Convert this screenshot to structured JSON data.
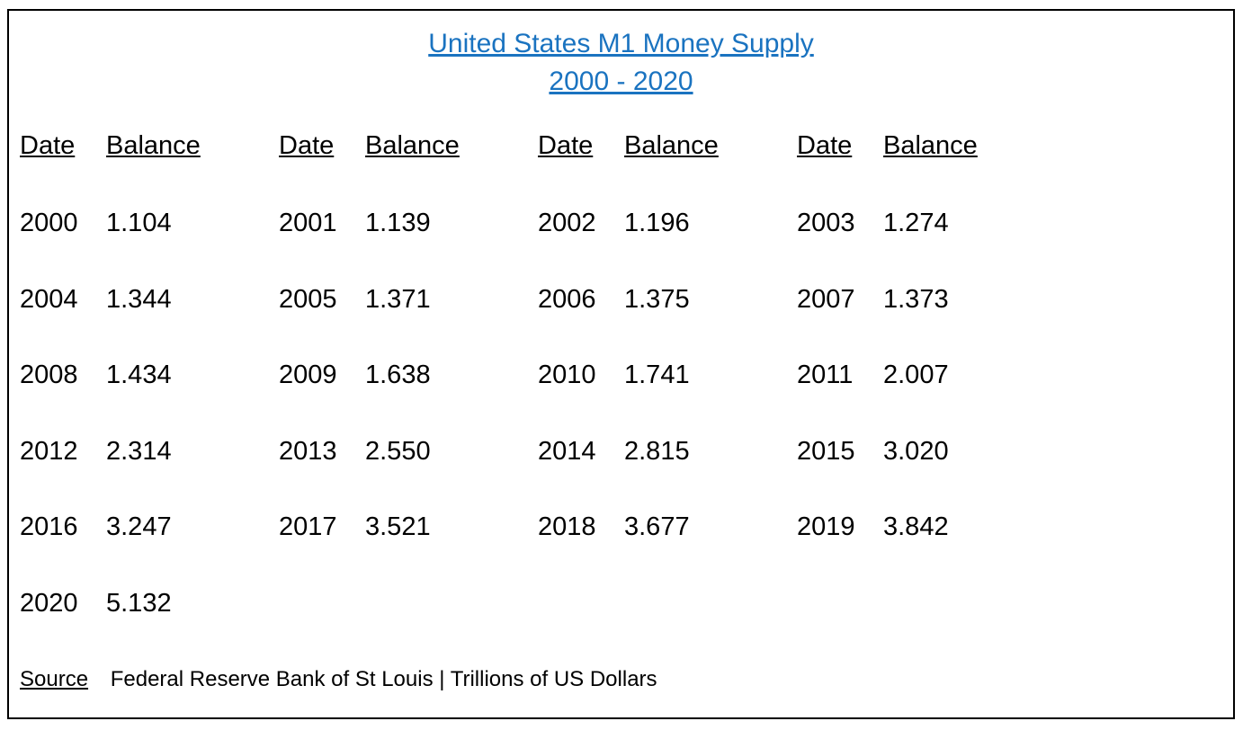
{
  "title": {
    "line1": "United States M1 Money Supply",
    "line2": "2000 - 2020"
  },
  "headers": {
    "date": "Date",
    "balance": "Balance"
  },
  "rows": [
    [
      [
        "2000",
        "1.104"
      ],
      [
        "2001",
        "1.139"
      ],
      [
        "2002",
        "1.196"
      ],
      [
        "2003",
        "1.274"
      ]
    ],
    [
      [
        "2004",
        "1.344"
      ],
      [
        "2005",
        "1.371"
      ],
      [
        "2006",
        "1.375"
      ],
      [
        "2007",
        "1.373"
      ]
    ],
    [
      [
        "2008",
        "1.434"
      ],
      [
        "2009",
        "1.638"
      ],
      [
        "2010",
        "1.741"
      ],
      [
        "2011",
        "2.007"
      ]
    ],
    [
      [
        "2012",
        "2.314"
      ],
      [
        "2013",
        "2.550"
      ],
      [
        "2014",
        "2.815"
      ],
      [
        "2015",
        "3.020"
      ]
    ],
    [
      [
        "2016",
        "3.247"
      ],
      [
        "2017",
        "3.521"
      ],
      [
        "2018",
        "3.677"
      ],
      [
        "2019",
        "3.842"
      ]
    ],
    [
      [
        "2020",
        "5.132"
      ]
    ]
  ],
  "source": {
    "label": "Source",
    "text": "Federal Reserve Bank of St Louis | Trillions of US Dollars"
  },
  "colors": {
    "title": "#1a73c0",
    "text": "#000000",
    "border": "#000000"
  }
}
